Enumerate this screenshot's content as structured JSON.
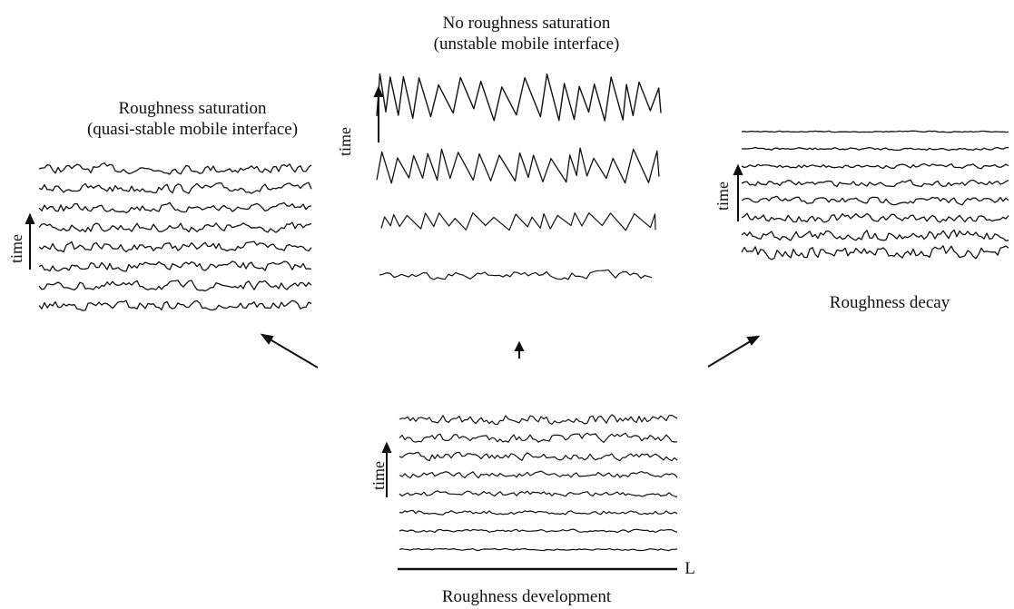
{
  "panels": {
    "top": {
      "title_line1": "No roughness saturation",
      "title_line2": "(unstable mobile interface)",
      "axis_label": "time"
    },
    "left": {
      "title_line1": "Roughness saturation",
      "title_line2": "(quasi-stable mobile interface)",
      "axis_label": "time"
    },
    "right": {
      "caption": "Roughness decay",
      "axis_label": "time"
    },
    "bottom": {
      "caption": "Roughness development",
      "axis_label": "time",
      "length_label": "L"
    }
  },
  "colors": {
    "ink": "#111111",
    "background": "#ffffff"
  }
}
